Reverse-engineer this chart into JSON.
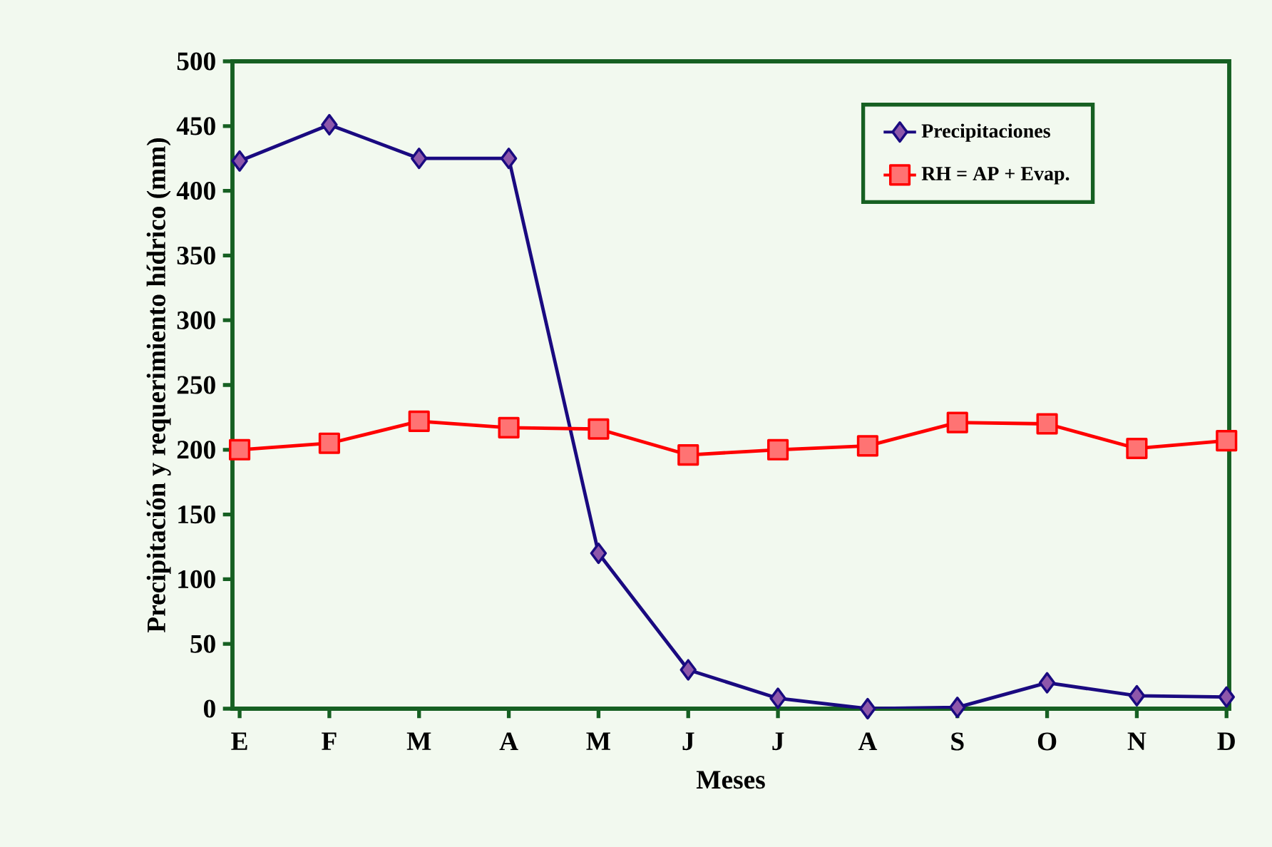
{
  "chart_data": {
    "type": "line",
    "xlabel": "Meses",
    "ylabel": "Precipitación y requerimiento hídrico (mm)",
    "categories": [
      "E",
      "F",
      "M",
      "A",
      "M",
      "J",
      "J",
      "A",
      "S",
      "O",
      "N",
      "D"
    ],
    "series": [
      {
        "name": "Precipitaciones",
        "color": "#1a0a80",
        "marker": "diamond",
        "values": [
          423,
          451,
          425,
          425,
          120,
          30,
          8,
          0,
          1,
          20,
          10,
          9
        ]
      },
      {
        "name": "RH = AP + Evap.",
        "color": "#ff0000",
        "marker": "square",
        "values": [
          200,
          205,
          222,
          217,
          216,
          196,
          200,
          203,
          221,
          220,
          201,
          207
        ]
      }
    ],
    "ylim": [
      0,
      500
    ],
    "yticks": [
      0,
      50,
      100,
      150,
      200,
      250,
      300,
      350,
      400,
      450,
      500
    ],
    "grid": false,
    "legend": "top right",
    "line_style": "solid"
  }
}
